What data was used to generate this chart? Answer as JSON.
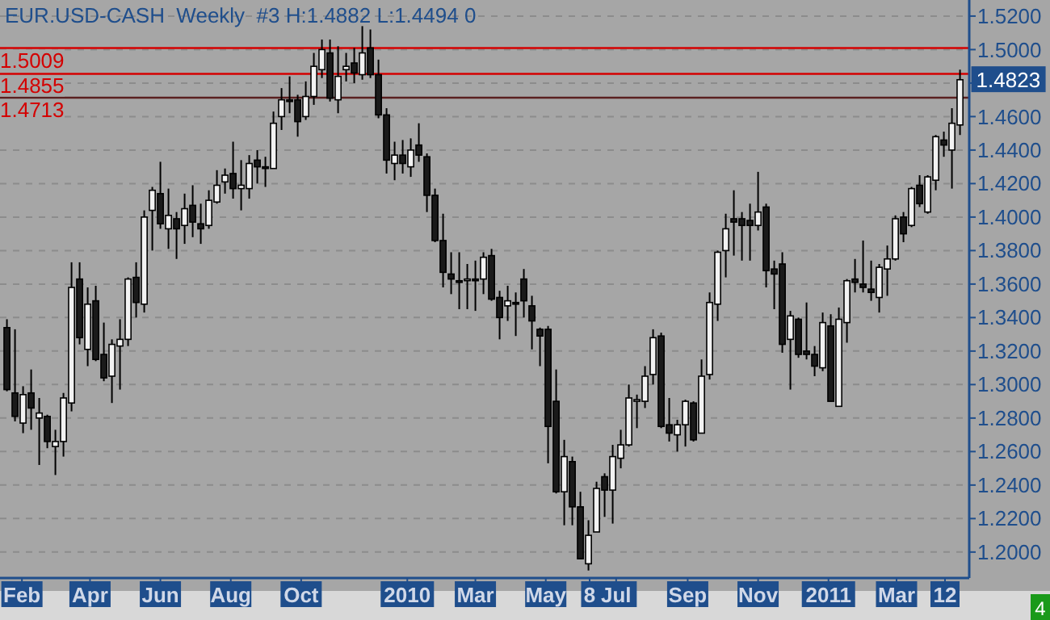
{
  "chart_data": {
    "type": "candlestick",
    "title": "EUR.USD-CASH  Weekly  #3 H:1.4882 L:1.4494 0",
    "xlim": [
      "2009-01-13",
      "2011-05-03"
    ],
    "ylim": [
      1.1845,
      1.5296
    ],
    "xticks": [
      {
        "value": "2009-02-01",
        "label": "Feb"
      },
      {
        "value": "2009-04-01",
        "label": "Apr"
      },
      {
        "value": "2009-06-01",
        "label": "Jun"
      },
      {
        "value": "2009-08-01",
        "label": "Aug"
      },
      {
        "value": "2009-10-01",
        "label": "Oct"
      },
      {
        "value": "2010-01-01",
        "label": "2010"
      },
      {
        "value": "2010-03-01",
        "label": "Mar"
      },
      {
        "value": "2010-05-01",
        "label": "May"
      },
      {
        "value": "2010-06-08",
        "label": "8"
      },
      {
        "value": "2010-07-01",
        "label": "Jul"
      },
      {
        "value": "2010-09-01",
        "label": "Sep"
      },
      {
        "value": "2010-11-01",
        "label": "Nov"
      },
      {
        "value": "2011-01-01",
        "label": "2011"
      },
      {
        "value": "2011-03-01",
        "label": "Mar"
      },
      {
        "value": "2011-04-12",
        "label": "12"
      }
    ],
    "yticks": [
      {
        "value": 1.2,
        "label": "1.2000"
      },
      {
        "value": 1.22,
        "label": "1.2200"
      },
      {
        "value": 1.24,
        "label": "1.2400"
      },
      {
        "value": 1.26,
        "label": "1.2600"
      },
      {
        "value": 1.28,
        "label": "1.2800"
      },
      {
        "value": 1.3,
        "label": "1.3000"
      },
      {
        "value": 1.32,
        "label": "1.3200"
      },
      {
        "value": 1.34,
        "label": "1.3400"
      },
      {
        "value": 1.36,
        "label": "1.3600"
      },
      {
        "value": 1.38,
        "label": "1.3800"
      },
      {
        "value": 1.4,
        "label": "1.4000"
      },
      {
        "value": 1.42,
        "label": "1.4200"
      },
      {
        "value": 1.44,
        "label": "1.4400"
      },
      {
        "value": 1.46,
        "label": "1.4600"
      },
      {
        "value": 1.48,
        "label": null
      },
      {
        "value": 1.5,
        "label": "1.5000"
      },
      {
        "value": 1.52,
        "label": "1.5200"
      }
    ],
    "grid": "y",
    "ref_lines": [
      {
        "axis": "y",
        "value": 1.5009,
        "label": "1.5009",
        "color": "#d40000"
      },
      {
        "axis": "y",
        "value": 1.4855,
        "label": "1.4855",
        "color": "#d40000"
      },
      {
        "axis": "y",
        "value": 1.4713,
        "label": "1.4713",
        "color": "#5a2020"
      }
    ],
    "annotations": [
      {
        "text": "1.4823",
        "x": "2011-04-25",
        "y": 1.4823
      },
      "4"
    ],
    "x": [
      "2009-01-19",
      "2009-01-26",
      "2009-02-02",
      "2009-02-09",
      "2009-02-16",
      "2009-02-23",
      "2009-03-02",
      "2009-03-09",
      "2009-03-16",
      "2009-03-23",
      "2009-03-30",
      "2009-04-06",
      "2009-04-13",
      "2009-04-20",
      "2009-04-27",
      "2009-05-04",
      "2009-05-11",
      "2009-05-18",
      "2009-05-25",
      "2009-06-01",
      "2009-06-08",
      "2009-06-15",
      "2009-06-22",
      "2009-06-29",
      "2009-07-06",
      "2009-07-13",
      "2009-07-20",
      "2009-07-27",
      "2009-08-03",
      "2009-08-10",
      "2009-08-17",
      "2009-08-24",
      "2009-08-31",
      "2009-09-07",
      "2009-09-14",
      "2009-09-21",
      "2009-09-28",
      "2009-10-05",
      "2009-10-12",
      "2009-10-19",
      "2009-10-26",
      "2009-11-02",
      "2009-11-09",
      "2009-11-16",
      "2009-11-23",
      "2009-11-30",
      "2009-12-07",
      "2009-12-14",
      "2009-12-21",
      "2009-12-28",
      "2010-01-04",
      "2010-01-11",
      "2010-01-18",
      "2010-01-25",
      "2010-02-01",
      "2010-02-08",
      "2010-02-15",
      "2010-02-22",
      "2010-03-01",
      "2010-03-08",
      "2010-03-15",
      "2010-03-22",
      "2010-03-29",
      "2010-04-05",
      "2010-04-12",
      "2010-04-19",
      "2010-04-26",
      "2010-05-03",
      "2010-05-10",
      "2010-05-17",
      "2010-05-24",
      "2010-05-31",
      "2010-06-07",
      "2010-06-14",
      "2010-06-21",
      "2010-06-28",
      "2010-07-05",
      "2010-07-12",
      "2010-07-19",
      "2010-07-26",
      "2010-08-02",
      "2010-08-09",
      "2010-08-16",
      "2010-08-23",
      "2010-08-30",
      "2010-09-06",
      "2010-09-13",
      "2010-09-20",
      "2010-09-27",
      "2010-10-04",
      "2010-10-11",
      "2010-10-18",
      "2010-10-25",
      "2010-11-01",
      "2010-11-08",
      "2010-11-15",
      "2010-11-22",
      "2010-11-29",
      "2010-12-06",
      "2010-12-13",
      "2010-12-20",
      "2010-12-27",
      "2011-01-03",
      "2011-01-10",
      "2011-01-17",
      "2011-01-24",
      "2011-01-31",
      "2011-02-07",
      "2011-02-14",
      "2011-02-21",
      "2011-02-28",
      "2011-03-07",
      "2011-03-14",
      "2011-03-21",
      "2011-03-28",
      "2011-04-04",
      "2011-04-11",
      "2011-04-18",
      "2011-04-25"
    ],
    "ohlc": [
      [
        1.334,
        1.339,
        1.296,
        1.297
      ],
      [
        1.295,
        1.333,
        1.278,
        1.281
      ],
      [
        1.277,
        1.299,
        1.271,
        1.294
      ],
      [
        1.295,
        1.309,
        1.273,
        1.286
      ],
      [
        1.28,
        1.292,
        1.252,
        1.283
      ],
      [
        1.281,
        1.282,
        1.262,
        1.266
      ],
      [
        1.263,
        1.273,
        1.246,
        1.266
      ],
      [
        1.266,
        1.295,
        1.257,
        1.292
      ],
      [
        1.289,
        1.373,
        1.284,
        1.358
      ],
      [
        1.363,
        1.373,
        1.324,
        1.328
      ],
      [
        1.321,
        1.358,
        1.311,
        1.348
      ],
      [
        1.35,
        1.359,
        1.314,
        1.315
      ],
      [
        1.318,
        1.337,
        1.302,
        1.304
      ],
      [
        1.305,
        1.327,
        1.289,
        1.324
      ],
      [
        1.323,
        1.339,
        1.297,
        1.327
      ],
      [
        1.327,
        1.364,
        1.323,
        1.363
      ],
      [
        1.364,
        1.373,
        1.34,
        1.349
      ],
      [
        1.348,
        1.404,
        1.343,
        1.4
      ],
      [
        1.404,
        1.418,
        1.38,
        1.416
      ],
      [
        1.414,
        1.433,
        1.393,
        1.396
      ],
      [
        1.393,
        1.417,
        1.381,
        1.401
      ],
      [
        1.399,
        1.403,
        1.375,
        1.393
      ],
      [
        1.395,
        1.414,
        1.384,
        1.405
      ],
      [
        1.407,
        1.419,
        1.388,
        1.397
      ],
      [
        1.396,
        1.408,
        1.384,
        1.393
      ],
      [
        1.395,
        1.416,
        1.393,
        1.41
      ],
      [
        1.409,
        1.428,
        1.408,
        1.419
      ],
      [
        1.421,
        1.429,
        1.414,
        1.425
      ],
      [
        1.426,
        1.445,
        1.411,
        1.417
      ],
      [
        1.417,
        1.434,
        1.404,
        1.419
      ],
      [
        1.417,
        1.437,
        1.411,
        1.432
      ],
      [
        1.434,
        1.44,
        1.42,
        1.43
      ],
      [
        1.43,
        1.436,
        1.418,
        1.429
      ],
      [
        1.429,
        1.463,
        1.429,
        1.456
      ],
      [
        1.46,
        1.477,
        1.452,
        1.47
      ],
      [
        1.47,
        1.484,
        1.462,
        1.469
      ],
      [
        1.47,
        1.473,
        1.448,
        1.457
      ],
      [
        1.46,
        1.481,
        1.458,
        1.472
      ],
      [
        1.472,
        1.498,
        1.467,
        1.49
      ],
      [
        1.488,
        1.506,
        1.483,
        1.5
      ],
      [
        1.498,
        1.506,
        1.469,
        1.471
      ],
      [
        1.47,
        1.502,
        1.462,
        1.484
      ],
      [
        1.488,
        1.498,
        1.481,
        1.49
      ],
      [
        1.492,
        1.501,
        1.48,
        1.486
      ],
      [
        1.485,
        1.514,
        1.482,
        1.498
      ],
      [
        1.501,
        1.512,
        1.483,
        1.485
      ],
      [
        1.485,
        1.494,
        1.459,
        1.461
      ],
      [
        1.461,
        1.465,
        1.426,
        1.434
      ],
      [
        1.432,
        1.445,
        1.422,
        1.437
      ],
      [
        1.437,
        1.446,
        1.426,
        1.432
      ],
      [
        1.43,
        1.447,
        1.424,
        1.44
      ],
      [
        1.443,
        1.456,
        1.433,
        1.437
      ],
      [
        1.436,
        1.438,
        1.403,
        1.413
      ],
      [
        1.413,
        1.417,
        1.385,
        1.386
      ],
      [
        1.386,
        1.402,
        1.358,
        1.367
      ],
      [
        1.366,
        1.379,
        1.354,
        1.363
      ],
      [
        1.362,
        1.379,
        1.345,
        1.361
      ],
      [
        1.363,
        1.372,
        1.345,
        1.363
      ],
      [
        1.363,
        1.374,
        1.344,
        1.362
      ],
      [
        1.363,
        1.379,
        1.354,
        1.376
      ],
      [
        1.377,
        1.381,
        1.35,
        1.351
      ],
      [
        1.352,
        1.356,
        1.327,
        1.34
      ],
      [
        1.347,
        1.359,
        1.338,
        1.35
      ],
      [
        1.349,
        1.355,
        1.329,
        1.348
      ],
      [
        1.363,
        1.369,
        1.34,
        1.35
      ],
      [
        1.347,
        1.353,
        1.321,
        1.338
      ],
      [
        1.333,
        1.334,
        1.311,
        1.329
      ],
      [
        1.333,
        1.335,
        1.253,
        1.275
      ],
      [
        1.29,
        1.309,
        1.235,
        1.236
      ],
      [
        1.236,
        1.267,
        1.216,
        1.257
      ],
      [
        1.254,
        1.257,
        1.216,
        1.227
      ],
      [
        1.227,
        1.236,
        1.196,
        1.196
      ],
      [
        1.193,
        1.219,
        1.189,
        1.21
      ],
      [
        1.212,
        1.242,
        1.212,
        1.238
      ],
      [
        1.245,
        1.247,
        1.221,
        1.237
      ],
      [
        1.237,
        1.264,
        1.217,
        1.257
      ],
      [
        1.256,
        1.273,
        1.25,
        1.264
      ],
      [
        1.264,
        1.3,
        1.263,
        1.292
      ],
      [
        1.29,
        1.294,
        1.274,
        1.291
      ],
      [
        1.29,
        1.311,
        1.286,
        1.305
      ],
      [
        1.306,
        1.333,
        1.3,
        1.328
      ],
      [
        1.329,
        1.331,
        1.274,
        1.275
      ],
      [
        1.276,
        1.292,
        1.266,
        1.271
      ],
      [
        1.27,
        1.279,
        1.26,
        1.276
      ],
      [
        1.276,
        1.291,
        1.263,
        1.29
      ],
      [
        1.289,
        1.29,
        1.266,
        1.267
      ],
      [
        1.271,
        1.315,
        1.271,
        1.305
      ],
      [
        1.306,
        1.355,
        1.303,
        1.349
      ],
      [
        1.348,
        1.38,
        1.338,
        1.379
      ],
      [
        1.38,
        1.402,
        1.364,
        1.393
      ],
      [
        1.399,
        1.416,
        1.377,
        1.397
      ],
      [
        1.399,
        1.403,
        1.374,
        1.395
      ],
      [
        1.398,
        1.408,
        1.374,
        1.395
      ],
      [
        1.395,
        1.427,
        1.392,
        1.403
      ],
      [
        1.406,
        1.408,
        1.358,
        1.368
      ],
      [
        1.369,
        1.374,
        1.345,
        1.366
      ],
      [
        1.372,
        1.379,
        1.319,
        1.324
      ],
      [
        1.327,
        1.344,
        1.297,
        1.341
      ],
      [
        1.339,
        1.34,
        1.316,
        1.318
      ],
      [
        1.32,
        1.349,
        1.315,
        1.318
      ],
      [
        1.318,
        1.323,
        1.305,
        1.311
      ],
      [
        1.31,
        1.343,
        1.308,
        1.337
      ],
      [
        1.335,
        1.342,
        1.29,
        1.29
      ],
      [
        1.287,
        1.346,
        1.287,
        1.339
      ],
      [
        1.337,
        1.363,
        1.325,
        1.362
      ],
      [
        1.363,
        1.375,
        1.355,
        1.361
      ],
      [
        1.36,
        1.386,
        1.355,
        1.358
      ],
      [
        1.357,
        1.374,
        1.35,
        1.355
      ],
      [
        1.352,
        1.372,
        1.343,
        1.37
      ],
      [
        1.369,
        1.383,
        1.353,
        1.375
      ],
      [
        1.375,
        1.401,
        1.374,
        1.399
      ],
      [
        1.4,
        1.403,
        1.385,
        1.39
      ],
      [
        1.395,
        1.418,
        1.394,
        1.417
      ],
      [
        1.419,
        1.425,
        1.406,
        1.408
      ],
      [
        1.403,
        1.425,
        1.402,
        1.424
      ],
      [
        1.422,
        1.449,
        1.416,
        1.448
      ],
      [
        1.446,
        1.451,
        1.436,
        1.443
      ],
      [
        1.44,
        1.465,
        1.417,
        1.456
      ],
      [
        1.455,
        1.488,
        1.449,
        1.482
      ]
    ]
  }
}
